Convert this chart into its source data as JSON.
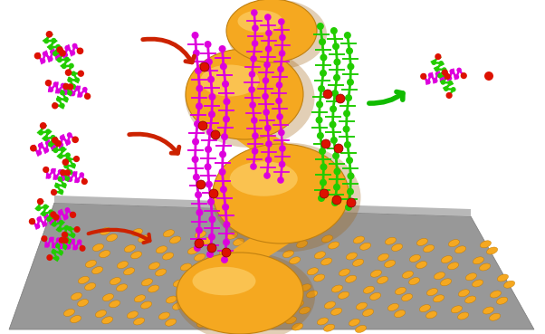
{
  "fig_width": 6.02,
  "fig_height": 3.69,
  "dpi": 100,
  "background_color": "#ffffff",
  "helix_color": "#f5a820",
  "helix_dark": "#c07800",
  "helix_light": "#ffd878",
  "molecule_purple": "#dd00dd",
  "molecule_green": "#22cc00",
  "molecule_red": "#dd1100",
  "arrow_red": "#cc2200",
  "arrow_green": "#11bb00",
  "platform_color": "#a0a0a0",
  "platform_light": "#c0c0c0",
  "small_particle_color": "#f5a820",
  "small_particle_dark": "#c07800"
}
